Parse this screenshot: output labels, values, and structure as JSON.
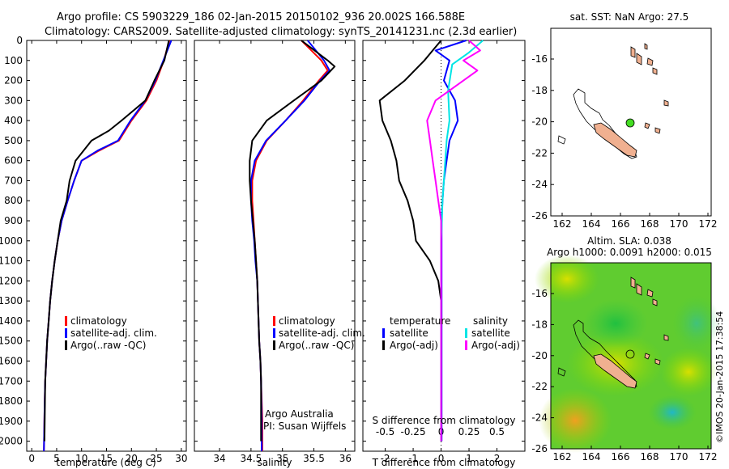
{
  "header": {
    "line1": "Argo profile: CS 5903229_186 02-Jan-2015 20150102_936 20.002S 166.588E",
    "line2": "Climatology: CARS2009. Satellite-adjusted climatology: synTS_20141231.nc (2.3d earlier)"
  },
  "colors": {
    "climatology": "#ff0000",
    "satellite": "#0000ff",
    "argo": "#000000",
    "sal_satellite": "#00e5e5",
    "sal_argo": "#ff00ff",
    "land": "#f0b090",
    "marker": "#44dd22"
  },
  "depth_ticks": [
    "0",
    "100",
    "200",
    "300",
    "400",
    "500",
    "600",
    "700",
    "800",
    "900",
    "1000",
    "1100",
    "1200",
    "1300",
    "1400",
    "1500",
    "1600",
    "1700",
    "1800",
    "1900",
    "2000"
  ],
  "legend": {
    "climatology": "climatology",
    "satellite": "satellite-adj. clim.",
    "argo": "Argo(..raw -QC)"
  },
  "diff_legend": {
    "temperature": "temperature",
    "salinity": "salinity",
    "satellite": "satellite",
    "argo_adj": "Argo(-adj)"
  },
  "credit": {
    "line1": "Argo Australia",
    "line2": "PI: Susan Wijffels"
  },
  "map1": {
    "title": "sat. SST: NaN Argo: 27.5",
    "xticks": [
      "162",
      "164",
      "166",
      "168",
      "170",
      "172"
    ],
    "yticks": [
      "-16",
      "-18",
      "-20",
      "-22",
      "-24",
      "-26"
    ]
  },
  "map2": {
    "title1": "Altim. SLA: 0.038",
    "title2": "Argo h1000: 0.0091 h2000: 0.015",
    "xticks": [
      "162",
      "164",
      "166",
      "168",
      "170",
      "172"
    ],
    "yticks": [
      "-16",
      "-18",
      "-20",
      "-22",
      "-24",
      "-26"
    ]
  },
  "stamp": "©IMOS 20-Jan-2015 17:38:54",
  "chart_data": [
    {
      "type": "line",
      "xlabel": "temperature (deg C)",
      "ylim": [
        2050,
        0
      ],
      "xlim": [
        -1,
        31
      ],
      "xticks": [
        "0",
        "5",
        "10",
        "15",
        "20",
        "25",
        "30"
      ],
      "series": [
        {
          "name": "climatology",
          "color": "#ff0000",
          "x": [
            27.6,
            26.5,
            25,
            23,
            20,
            17.5,
            13.5,
            10,
            8.5,
            7.2,
            6.0,
            5.2,
            4.6,
            4.1,
            3.7,
            3.4,
            3.1,
            2.9,
            2.7,
            2.6,
            2.45
          ],
          "y": [
            0,
            100,
            200,
            300,
            400,
            500,
            550,
            600,
            700,
            800,
            900,
            1000,
            1100,
            1200,
            1300,
            1400,
            1500,
            1600,
            1700,
            1800,
            2050
          ]
        },
        {
          "name": "satellite-adj. clim.",
          "color": "#0000ff",
          "x": [
            28.0,
            26.4,
            24.8,
            22.8,
            19.8,
            17.3,
            13.2,
            10,
            8.5,
            7.2,
            6.0,
            5.2,
            4.6,
            4.1,
            3.7,
            3.4,
            3.1,
            2.9,
            2.7,
            2.6,
            2.45
          ],
          "y": [
            0,
            100,
            200,
            300,
            400,
            500,
            550,
            600,
            700,
            800,
            900,
            1000,
            1100,
            1200,
            1300,
            1400,
            1500,
            1600,
            1700,
            1800,
            2050
          ]
        },
        {
          "name": "Argo(..raw -QC)",
          "color": "#000000",
          "x": [
            27.5,
            26.6,
            24.6,
            22.8,
            18.0,
            15.5,
            12.0,
            8.8,
            7.6,
            7.0,
            5.8,
            5.2,
            4.6,
            4.1,
            3.7,
            3.4,
            3.1,
            2.9,
            2.7,
            2.55
          ],
          "y": [
            0,
            100,
            200,
            300,
            400,
            450,
            500,
            600,
            700,
            800,
            900,
            1000,
            1100,
            1200,
            1300,
            1400,
            1500,
            1600,
            1700,
            2000
          ]
        }
      ]
    },
    {
      "type": "line",
      "xlabel": "salinity",
      "ylim": [
        2050,
        0
      ],
      "xlim": [
        33.6,
        36.15
      ],
      "xticks": [
        "34",
        "34.5",
        "35",
        "35.5",
        "36"
      ],
      "series": [
        {
          "name": "climatology",
          "color": "#ff0000",
          "x": [
            35.3,
            35.62,
            35.72,
            35.58,
            35.33,
            35.05,
            34.75,
            34.58,
            34.52,
            34.52,
            34.54,
            34.56,
            34.58,
            34.6,
            34.62,
            34.63,
            34.65,
            34.66,
            34.68,
            34.68
          ],
          "y": [
            0,
            100,
            150,
            200,
            300,
            400,
            500,
            600,
            700,
            800,
            900,
            1000,
            1100,
            1200,
            1400,
            1500,
            1600,
            1700,
            1900,
            2050
          ]
        },
        {
          "name": "satellite-adj. clim.",
          "color": "#0000ff",
          "x": [
            35.4,
            35.66,
            35.75,
            35.6,
            35.35,
            35.05,
            34.74,
            34.56,
            34.5,
            34.5,
            34.52,
            34.55,
            34.57,
            34.6,
            34.62,
            34.63,
            34.65,
            34.66,
            34.67,
            34.67
          ],
          "y": [
            0,
            100,
            150,
            200,
            300,
            400,
            500,
            600,
            700,
            800,
            900,
            1000,
            1100,
            1200,
            1400,
            1500,
            1600,
            1700,
            1900,
            2050
          ]
        },
        {
          "name": "Argo(..raw -QC)",
          "color": "#000000",
          "x": [
            35.3,
            35.72,
            35.83,
            35.62,
            35.18,
            34.75,
            34.52,
            34.48,
            34.48,
            34.5,
            34.53,
            34.56,
            34.58,
            34.6,
            34.62,
            34.63,
            34.65,
            34.66,
            34.66
          ],
          "y": [
            0,
            100,
            130,
            200,
            300,
            400,
            500,
            600,
            700,
            800,
            900,
            1000,
            1100,
            1200,
            1400,
            1500,
            1600,
            1700,
            2000
          ]
        }
      ]
    },
    {
      "type": "line",
      "xlabel": "T difference from climatology",
      "xlabel_top": "S difference from climatology",
      "ylim": [
        2050,
        0
      ],
      "xlim": [
        -2.8,
        3.0
      ],
      "xticks": [
        "-2",
        "-1",
        "0",
        "1",
        "2"
      ],
      "xticks_top": [
        [
          "-0.5",
          "-2"
        ],
        [
          "-0.25",
          "-1"
        ],
        [
          "0",
          "0"
        ],
        [
          "0.25",
          "1"
        ],
        [
          "0.5",
          "2"
        ]
      ],
      "series": [
        {
          "name": "temperature satellite",
          "color": "#0000ff",
          "x": [
            0.9,
            -0.2,
            0.3,
            0.1,
            0.5,
            0.6,
            0.3,
            0.2,
            0.1,
            0.05,
            0.02,
            0.02,
            0.02,
            0.02,
            0.02,
            0.02,
            0.02,
            0.02
          ],
          "y": [
            0,
            50,
            100,
            200,
            300,
            400,
            500,
            600,
            700,
            800,
            900,
            1000,
            1200,
            1400,
            1600,
            1800,
            1900,
            2000
          ]
        },
        {
          "name": "temperature Argo(-adj)",
          "color": "#000000",
          "x": [
            0,
            -0.3,
            -0.6,
            -1.3,
            -2.2,
            -2.1,
            -1.8,
            -1.6,
            -1.5,
            -1.2,
            -1.0,
            -0.9,
            -0.4,
            -0.1,
            0,
            0,
            0,
            0
          ],
          "y": [
            0,
            50,
            100,
            200,
            300,
            400,
            500,
            600,
            700,
            800,
            900,
            1000,
            1100,
            1200,
            1300,
            1500,
            1800,
            2000
          ]
        },
        {
          "name": "salinity satellite",
          "color": "#00e5e5",
          "x": [
            1.5,
            1.0,
            0.4,
            0.25,
            0.3,
            0.2,
            0.15,
            0.1,
            0.05,
            0.03,
            0.0,
            0.0,
            0.0
          ],
          "y": [
            0,
            60,
            120,
            250,
            400,
            500,
            600,
            700,
            800,
            900,
            1000,
            1500,
            2000
          ]
        },
        {
          "name": "salinity Argo(-adj)",
          "color": "#ff00ff",
          "x": [
            1.0,
            1.4,
            0.8,
            1.3,
            -0.2,
            -0.5,
            -0.4,
            -0.3,
            -0.2,
            -0.1,
            0.0,
            0.0,
            0.0
          ],
          "y": [
            0,
            50,
            100,
            150,
            300,
            400,
            500,
            600,
            700,
            800,
            900,
            1200,
            2000
          ]
        }
      ]
    }
  ]
}
